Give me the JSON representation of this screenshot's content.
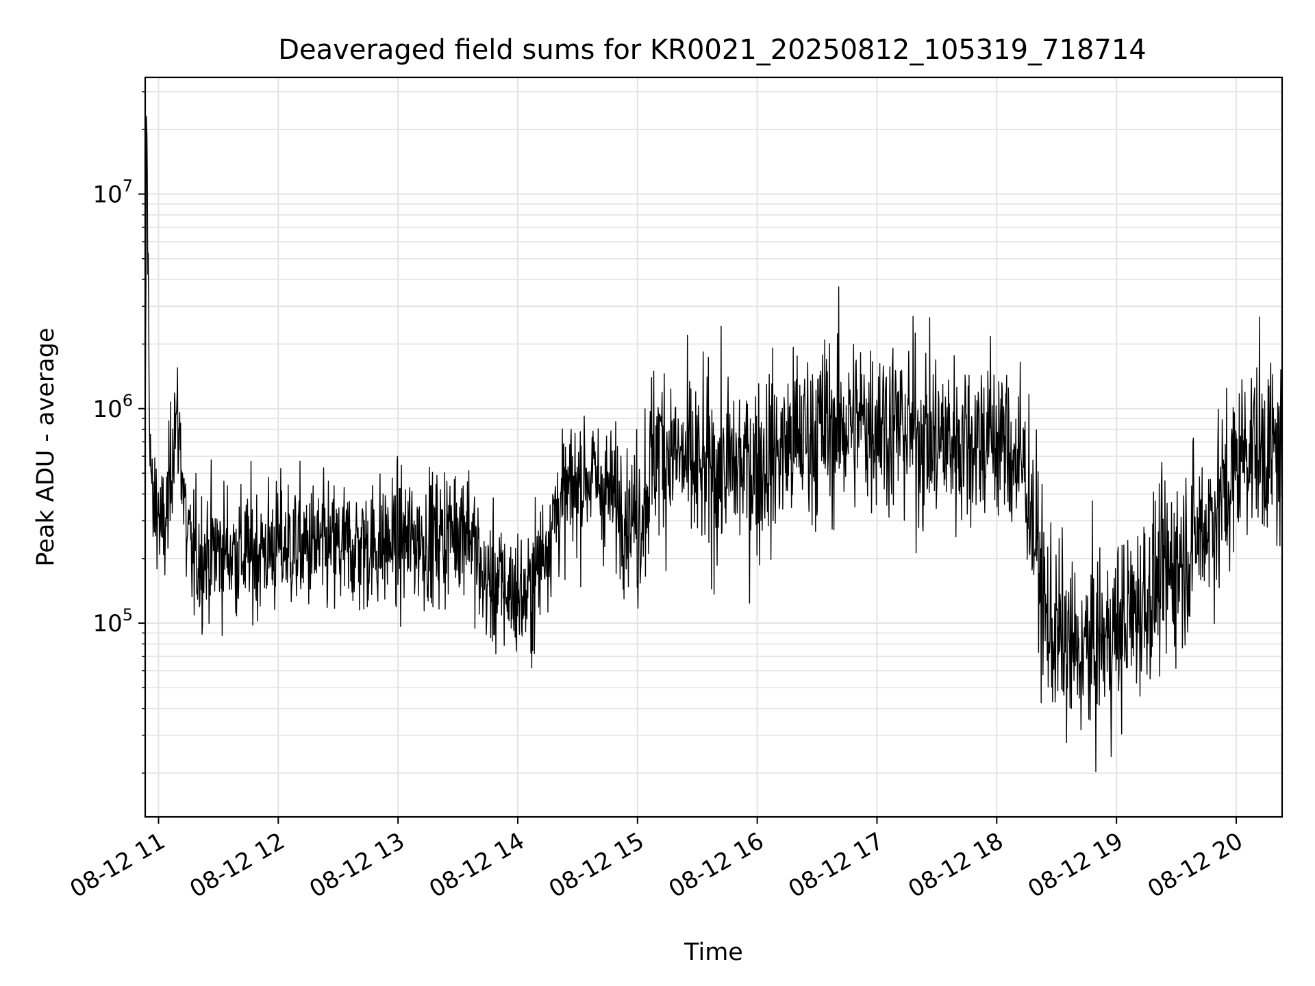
{
  "chart_data": {
    "type": "line",
    "title": "Deaveraged field sums for KR0021_20250812_105319_718714",
    "xlabel": "Time",
    "ylabel": "Peak ADU - average",
    "yscale": "log",
    "ylim": [
      12500,
      35000000
    ],
    "xlim": [
      "2025-08-12T10:53:19",
      "2025-08-12T20:23:00"
    ],
    "grid": true,
    "line_color": "#000000",
    "x_ticks": [
      {
        "t": "2025-08-12T11:00:00",
        "label": "08-12 11"
      },
      {
        "t": "2025-08-12T12:00:00",
        "label": "08-12 12"
      },
      {
        "t": "2025-08-12T13:00:00",
        "label": "08-12 13"
      },
      {
        "t": "2025-08-12T14:00:00",
        "label": "08-12 14"
      },
      {
        "t": "2025-08-12T15:00:00",
        "label": "08-12 15"
      },
      {
        "t": "2025-08-12T16:00:00",
        "label": "08-12 16"
      },
      {
        "t": "2025-08-12T17:00:00",
        "label": "08-12 17"
      },
      {
        "t": "2025-08-12T18:00:00",
        "label": "08-12 18"
      },
      {
        "t": "2025-08-12T19:00:00",
        "label": "08-12 19"
      },
      {
        "t": "2025-08-12T20:00:00",
        "label": "08-12 20"
      }
    ],
    "y_ticks": [
      {
        "value": 100000,
        "base": "10",
        "exp": "5"
      },
      {
        "value": 1000000,
        "base": "10",
        "exp": "6"
      },
      {
        "value": 10000000,
        "base": "10",
        "exp": "7"
      }
    ],
    "x": [
      "2025-08-12T10:53:19",
      "2025-08-12T10:54:00",
      "2025-08-12T10:55:30",
      "2025-08-12T10:57:00",
      "2025-08-12T10:59:00",
      "2025-08-12T11:02:00",
      "2025-08-12T11:05:00",
      "2025-08-12T11:08:00",
      "2025-08-12T11:11:00",
      "2025-08-12T11:14:00",
      "2025-08-12T11:17:00",
      "2025-08-12T11:30:00",
      "2025-08-12T11:45:00",
      "2025-08-12T12:00:00",
      "2025-08-12T12:30:00",
      "2025-08-12T13:00:00",
      "2025-08-12T13:20:00",
      "2025-08-12T13:35:00",
      "2025-08-12T13:42:00",
      "2025-08-12T13:50:00",
      "2025-08-12T14:05:00",
      "2025-08-12T14:20:00",
      "2025-08-12T14:35:00",
      "2025-08-12T15:00:00",
      "2025-08-12T15:10:00",
      "2025-08-12T15:30:00",
      "2025-08-12T16:00:00",
      "2025-08-12T16:30:00",
      "2025-08-12T17:00:00",
      "2025-08-12T17:30:00",
      "2025-08-12T18:00:00",
      "2025-08-12T18:15:00",
      "2025-08-12T18:25:00",
      "2025-08-12T18:40:00",
      "2025-08-12T19:00:00",
      "2025-08-12T19:20:00",
      "2025-08-12T19:40:00",
      "2025-08-12T19:55:00",
      "2025-08-12T20:05:00",
      "2025-08-12T20:15:00",
      "2025-08-12T20:23:00"
    ],
    "y": [
      400000,
      23000000,
      900000,
      300000,
      380000,
      250000,
      350000,
      950000,
      700000,
      250000,
      200000,
      220000,
      210000,
      230000,
      220000,
      240000,
      250000,
      300000,
      160000,
      150000,
      130000,
      350000,
      500000,
      300000,
      700000,
      500000,
      550000,
      800000,
      900000,
      700000,
      750000,
      500000,
      100000,
      70000,
      90000,
      150000,
      250000,
      400000,
      700000,
      650000,
      600000
    ]
  }
}
